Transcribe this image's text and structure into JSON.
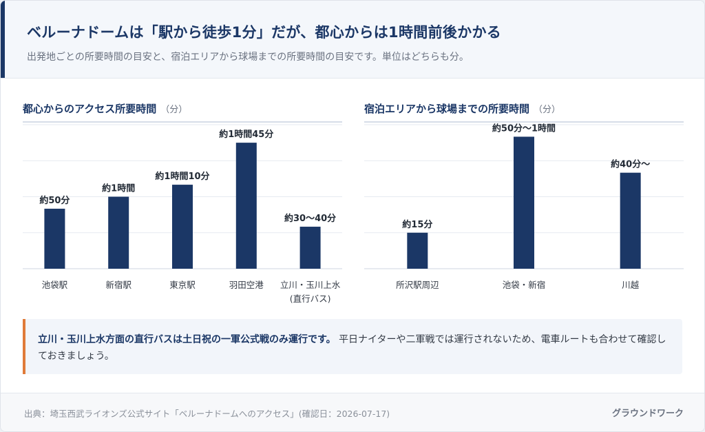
{
  "header": {
    "title": "ベルーナドームは「駅から徒歩1分」だが、都心からは1時間前後かかる",
    "subtitle": "出発地ごとの所要時間の目安と、宿泊エリアから球場までの所要時間の目安です。単位はどちらも分。"
  },
  "colors": {
    "bar": "#1b3766",
    "accent": "#e07b39"
  },
  "chart_data": [
    {
      "type": "bar",
      "title": "都心からのアクセス所要時間",
      "unit": "（分）",
      "categories": [
        "池袋駅",
        "新宿駅",
        "東京駅",
        "羽田空港",
        "立川・玉川上水\n(直行バス)"
      ],
      "values": [
        50,
        60,
        70,
        105,
        35
      ],
      "data_labels": [
        "約50分",
        "約1時間",
        "約1時間10分",
        "約1時間45分",
        "約30〜40分"
      ],
      "ylim": [
        0,
        120
      ],
      "grid": true
    },
    {
      "type": "bar",
      "title": "宿泊エリアから球場までの所要時間",
      "unit": "（分）",
      "categories": [
        "所沢駅周辺",
        "池袋・新宿",
        "川越"
      ],
      "values": [
        15,
        55,
        40
      ],
      "data_labels": [
        "約15分",
        "約50分〜1時間",
        "約40分〜"
      ],
      "ylim": [
        0,
        60
      ],
      "grid": true
    }
  ],
  "note": {
    "bold": "立川・玉川上水方面の直行バスは土日祝の一軍公式戦のみ運行です。",
    "text": "平日ナイターや二軍戦では運行されないため、電車ルートも合わせて確認しておきましょう。"
  },
  "footer": {
    "source": "出典：埼玉西武ライオンズ公式サイト「ベルーナドームへのアクセス」(確認日：2026-07-17)",
    "brand": "グラウンドワーク"
  }
}
